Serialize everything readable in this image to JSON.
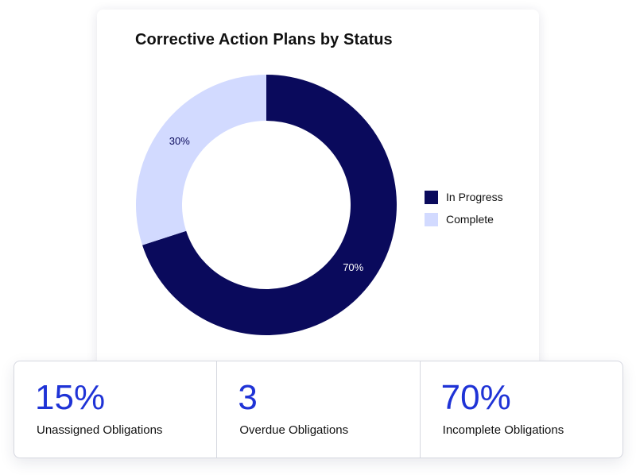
{
  "chart_data": {
    "type": "pie",
    "title": "Corrective Action Plans by Status",
    "series": [
      {
        "name": "In Progress",
        "value": 70,
        "label": "70%",
        "color": "#0a0a5c"
      },
      {
        "name": "Complete",
        "value": 30,
        "label": "30%",
        "color": "#d2daff"
      }
    ],
    "legend_position": "right"
  },
  "stats": [
    {
      "value": "15%",
      "label": "Unassigned Obligations"
    },
    {
      "value": "3",
      "label": "Overdue Obligations"
    },
    {
      "value": "70%",
      "label": "Incomplete Obligations"
    }
  ],
  "colors": {
    "accent": "#1f33d6",
    "border": "#d6d8e0"
  }
}
